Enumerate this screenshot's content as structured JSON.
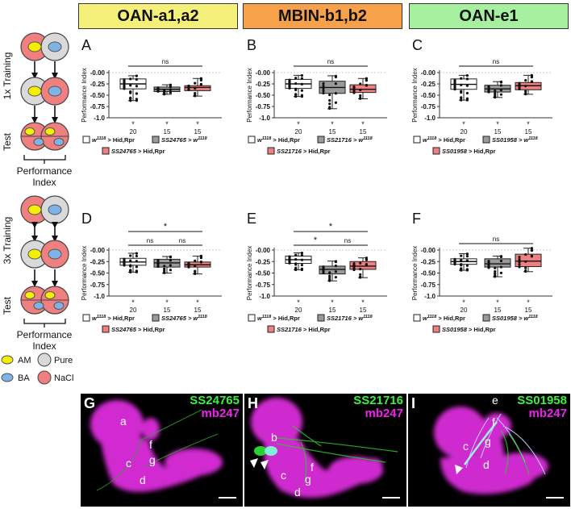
{
  "headers": [
    "OAN-a1,a2",
    "MBIN-b1,b2",
    "OAN-e1"
  ],
  "schematic": {
    "training1": "1x Training",
    "training3": "3x Training",
    "test": "Test",
    "performance_index": [
      "Performance",
      "Index"
    ],
    "legend": {
      "am": "AM",
      "ba": "BA",
      "pure": "Pure",
      "nacl": "NaCl"
    }
  },
  "colors": {
    "control": "#ffffff",
    "parental": "#9a9a9a",
    "experimental": "#f07f7f",
    "am_odor": "#f5f000",
    "ba_odor": "#7fb3e6",
    "pure": "#d9d9d9",
    "nacl": "#f07f7f"
  },
  "chart_data": [
    {
      "panel": "A",
      "type": "box",
      "ylabel": "Performance Index",
      "ylim": [
        -1.0,
        0.0
      ],
      "yticks": [
        "-0.00",
        "-0.25",
        "-0.50",
        "-0.75",
        "-1.0"
      ],
      "groups": [
        {
          "color": "control",
          "median": -0.25,
          "q1": -0.36,
          "q3": -0.14,
          "min": -0.62,
          "max": -0.07,
          "n": "20",
          "star": "*"
        },
        {
          "color": "parental",
          "median": -0.37,
          "q1": -0.42,
          "q3": -0.32,
          "min": -0.48,
          "max": -0.27,
          "n": "15",
          "star": "*"
        },
        {
          "color": "experimental",
          "median": -0.33,
          "q1": -0.4,
          "q3": -0.29,
          "min": -0.52,
          "max": -0.13,
          "n": "15",
          "star": "*"
        }
      ],
      "significance": [
        {
          "from": 0,
          "to": 2,
          "label": "ns"
        }
      ],
      "legend": {
        "control": [
          "w",
          "1118",
          " > Hid,Rpr"
        ],
        "parental": [
          "SS24765 > w",
          "1118",
          ""
        ],
        "experimental": [
          "SS24765",
          "",
          " > Hid,Rpr"
        ]
      }
    },
    {
      "panel": "B",
      "type": "box",
      "ylabel": "Performance Index",
      "ylim": [
        -1.0,
        0.0
      ],
      "yticks": [
        "-0.00",
        "-0.25",
        "-0.50",
        "-0.75",
        "-1.0"
      ],
      "groups": [
        {
          "color": "control",
          "median": -0.25,
          "q1": -0.35,
          "q3": -0.15,
          "min": -0.53,
          "max": -0.06,
          "n": "20",
          "star": "*"
        },
        {
          "color": "parental",
          "median": -0.33,
          "q1": -0.46,
          "q3": -0.19,
          "min": -0.8,
          "max": -0.07,
          "n": "15",
          "star": "*"
        },
        {
          "color": "experimental",
          "median": -0.37,
          "q1": -0.44,
          "q3": -0.27,
          "min": -0.58,
          "max": -0.13,
          "n": "15",
          "star": "*"
        }
      ],
      "significance": [
        {
          "from": 0,
          "to": 2,
          "label": "ns"
        }
      ],
      "legend": {
        "control": [
          "w",
          "1118",
          " > Hid,Rpr"
        ],
        "parental": [
          "SS21716 > w",
          "1118",
          ""
        ],
        "experimental": [
          "SS21716",
          "",
          " > Hid,Rpr"
        ]
      }
    },
    {
      "panel": "C",
      "type": "box",
      "ylabel": "Performance Index",
      "ylim": [
        -1.0,
        0.0
      ],
      "yticks": [
        "-0.00",
        "-0.25",
        "-0.50",
        "-0.75",
        "-1.0"
      ],
      "groups": [
        {
          "color": "control",
          "median": -0.26,
          "q1": -0.37,
          "q3": -0.14,
          "min": -0.61,
          "max": -0.06,
          "n": "20",
          "star": "*"
        },
        {
          "color": "parental",
          "median": -0.36,
          "q1": -0.43,
          "q3": -0.28,
          "min": -0.55,
          "max": -0.2,
          "n": "15",
          "star": "*"
        },
        {
          "color": "experimental",
          "median": -0.29,
          "q1": -0.38,
          "q3": -0.22,
          "min": -0.48,
          "max": -0.06,
          "n": "15",
          "star": "*"
        }
      ],
      "significance": [
        {
          "from": 0,
          "to": 2,
          "label": "ns"
        }
      ],
      "legend": {
        "control": [
          "w",
          "1118",
          " > Hid,Rpr"
        ],
        "parental": [
          "SS01958 > w",
          "1118",
          ""
        ],
        "experimental": [
          "SS01958",
          "",
          " > Hid,Rpr"
        ]
      }
    },
    {
      "panel": "D",
      "type": "box",
      "ylabel": "Performance Index",
      "ylim": [
        -1.0,
        0.0
      ],
      "yticks": [
        "-0.00",
        "-0.25",
        "-0.50",
        "-0.75",
        "-1.0"
      ],
      "groups": [
        {
          "color": "control",
          "median": -0.26,
          "q1": -0.33,
          "q3": -0.18,
          "min": -0.48,
          "max": -0.07,
          "n": "20",
          "star": "*"
        },
        {
          "color": "parental",
          "median": -0.28,
          "q1": -0.37,
          "q3": -0.2,
          "min": -0.5,
          "max": -0.14,
          "n": "15",
          "star": "*"
        },
        {
          "color": "experimental",
          "median": -0.32,
          "q1": -0.37,
          "q3": -0.26,
          "min": -0.52,
          "max": -0.13,
          "n": "15",
          "star": "*"
        }
      ],
      "significance": [
        {
          "from": 0,
          "to": 2,
          "label": "*",
          "level": 2
        },
        {
          "from": 0,
          "to": 1,
          "label": "ns",
          "level": 1
        },
        {
          "from": 1,
          "to": 2,
          "label": "ns",
          "level": 1
        }
      ],
      "legend": {
        "control": [
          "w",
          "1118",
          " > Hid,Rpr"
        ],
        "parental": [
          "SS24765 > w",
          "1118",
          ""
        ],
        "experimental": [
          "SS24765",
          "",
          " > Hid,Rpr"
        ]
      }
    },
    {
      "panel": "E",
      "type": "box",
      "ylabel": "Performance Index",
      "ylim": [
        -1.0,
        0.0
      ],
      "yticks": [
        "-0.00",
        "-0.25",
        "-0.50",
        "-0.75",
        "-1.0"
      ],
      "groups": [
        {
          "color": "control",
          "median": -0.21,
          "q1": -0.29,
          "q3": -0.13,
          "min": -0.43,
          "max": -0.06,
          "n": "20",
          "star": "*"
        },
        {
          "color": "parental",
          "median": -0.42,
          "q1": -0.52,
          "q3": -0.35,
          "min": -0.67,
          "max": -0.24,
          "n": "15",
          "star": "*"
        },
        {
          "color": "experimental",
          "median": -0.35,
          "q1": -0.42,
          "q3": -0.25,
          "min": -0.6,
          "max": -0.17,
          "n": "15",
          "star": "*"
        }
      ],
      "significance": [
        {
          "from": 0,
          "to": 2,
          "label": "*",
          "level": 2
        },
        {
          "from": 0,
          "to": 1,
          "label": "*",
          "level": 1
        },
        {
          "from": 1,
          "to": 2,
          "label": "ns",
          "level": 1
        }
      ],
      "legend": {
        "control": [
          "w",
          "1118",
          " > Hid,Rpr"
        ],
        "parental": [
          "SS21716 > w",
          "1118",
          ""
        ],
        "experimental": [
          "SS21716",
          "",
          " > Hid,Rpr"
        ]
      }
    },
    {
      "panel": "F",
      "type": "box",
      "ylabel": "Performance Index",
      "ylim": [
        -1.0,
        0.0
      ],
      "yticks": [
        "-0.00",
        "-0.25",
        "-0.50",
        "-0.75",
        "-1.0"
      ],
      "groups": [
        {
          "color": "control",
          "median": -0.25,
          "q1": -0.31,
          "q3": -0.19,
          "min": -0.44,
          "max": -0.08,
          "n": "20",
          "star": "*"
        },
        {
          "color": "parental",
          "median": -0.3,
          "q1": -0.37,
          "q3": -0.19,
          "min": -0.58,
          "max": -0.13,
          "n": "15",
          "star": "*"
        },
        {
          "color": "experimental",
          "median": -0.24,
          "q1": -0.36,
          "q3": -0.09,
          "min": -0.47,
          "max": 0.04,
          "n": "15",
          "star": "*"
        }
      ],
      "significance": [
        {
          "from": 0,
          "to": 2,
          "label": "ns"
        }
      ],
      "legend": {
        "control": [
          "w",
          "1118",
          " > Hid,Rpr"
        ],
        "parental": [
          "SS01958 > w",
          "1118",
          ""
        ],
        "experimental": [
          "SS01958",
          "",
          " > Hid,Rpr"
        ]
      }
    }
  ],
  "micrographs": [
    {
      "panel": "G",
      "genotype": "SS24765",
      "marker": "mb247",
      "lobes": [
        "a",
        "f",
        "c",
        "g",
        "d"
      ]
    },
    {
      "panel": "H",
      "genotype": "SS21716",
      "marker": "mb247",
      "lobes": [
        "b",
        "c",
        "f",
        "g",
        "d"
      ]
    },
    {
      "panel": "I",
      "genotype": "SS01958",
      "marker": "mb247",
      "lobes": [
        "e",
        "f",
        "c",
        "g",
        "d"
      ]
    }
  ]
}
